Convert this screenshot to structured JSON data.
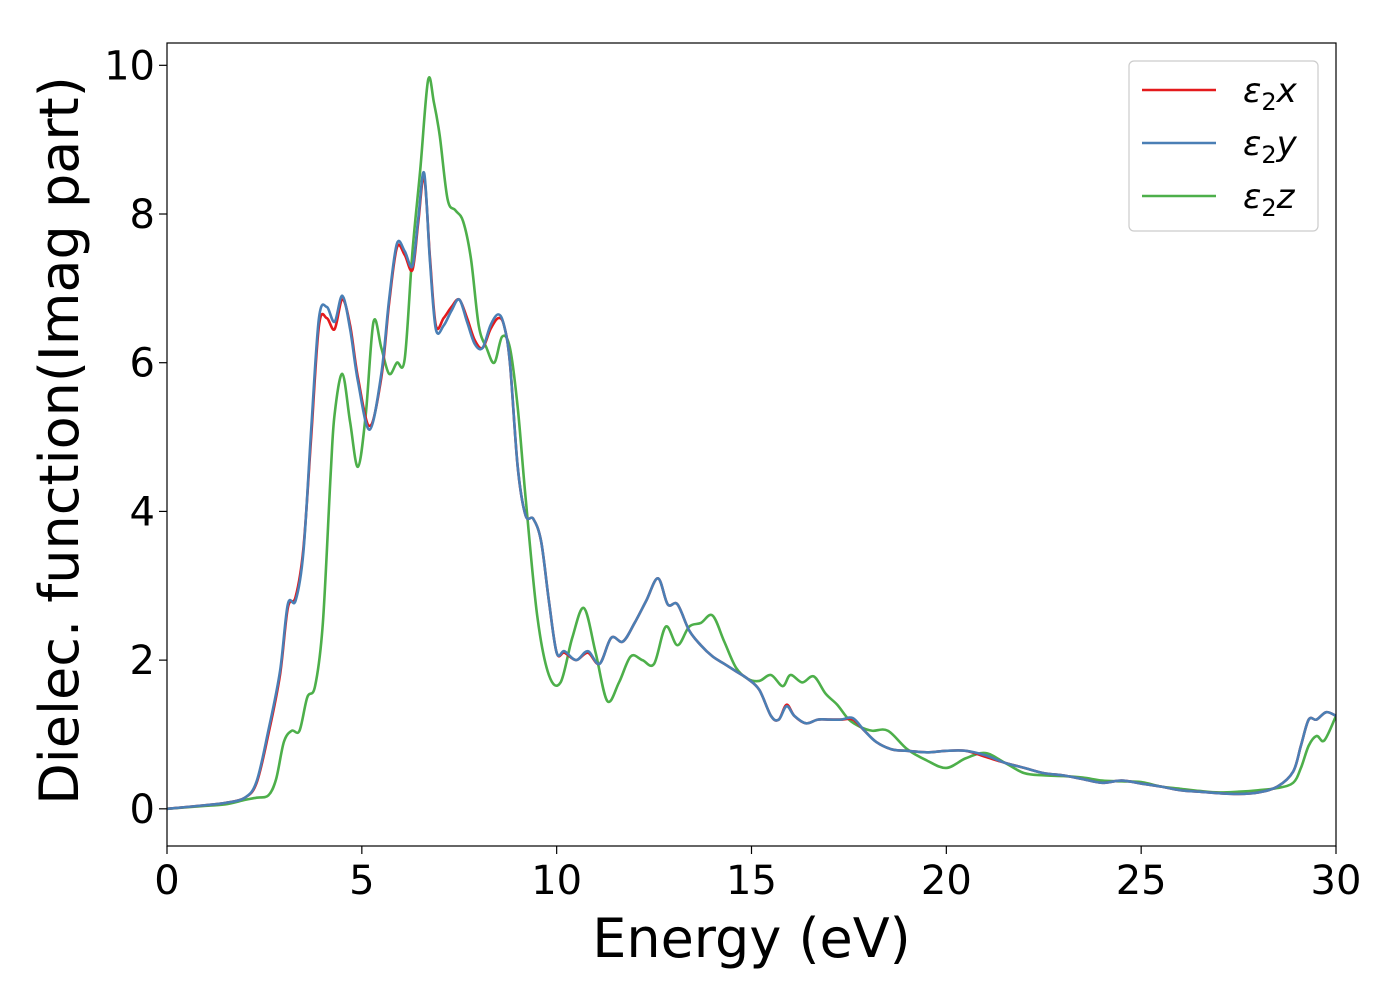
{
  "chart_data": {
    "type": "line",
    "title": "",
    "xlabel": "Energy (eV)",
    "ylabel": "Dielec. function(Imag part)",
    "xlim": [
      0,
      30
    ],
    "ylim": [
      -0.5,
      10.3
    ],
    "xticks": [
      0,
      5,
      10,
      15,
      20,
      25,
      30
    ],
    "yticks": [
      0,
      2,
      4,
      6,
      8,
      10
    ],
    "grid": false,
    "legend_position": "top-right",
    "series": [
      {
        "name": "ε2x",
        "legend_base": "ε",
        "legend_sub": "2",
        "legend_var": "x",
        "color": "#e41a1c",
        "x": [
          0,
          1,
          1.5,
          2,
          2.3,
          2.6,
          2.9,
          3.1,
          3.3,
          3.5,
          3.7,
          3.9,
          4.1,
          4.3,
          4.5,
          4.7,
          4.9,
          5.2,
          5.5,
          5.7,
          5.9,
          6.1,
          6.3,
          6.45,
          6.6,
          6.75,
          6.9,
          7.1,
          7.3,
          7.5,
          7.7,
          7.9,
          8.1,
          8.3,
          8.5,
          8.65,
          8.8,
          9.0,
          9.2,
          9.4,
          9.6,
          9.8,
          10.0,
          10.2,
          10.5,
          10.8,
          11.1,
          11.4,
          11.7,
          12.0,
          12.3,
          12.6,
          12.85,
          13.1,
          13.4,
          13.7,
          14.0,
          14.3,
          14.6,
          14.9,
          15.2,
          15.5,
          15.7,
          15.9,
          16.1,
          16.4,
          16.7,
          17.0,
          17.3,
          17.6,
          17.9,
          18.2,
          18.6,
          19.0,
          19.5,
          20.0,
          20.5,
          21.0,
          21.5,
          22.0,
          22.5,
          23.0,
          23.5,
          24.0,
          24.5,
          25.0,
          25.5,
          26.0,
          26.5,
          27.0,
          27.5,
          28.0,
          28.5,
          28.9,
          29.1,
          29.3,
          29.5,
          29.75,
          30
        ],
        "y": [
          0,
          0.05,
          0.08,
          0.15,
          0.35,
          1.0,
          1.8,
          2.7,
          2.85,
          3.5,
          5.0,
          6.5,
          6.6,
          6.45,
          6.85,
          6.5,
          5.8,
          5.15,
          5.8,
          6.8,
          7.55,
          7.45,
          7.25,
          7.9,
          8.5,
          7.4,
          6.5,
          6.6,
          6.75,
          6.85,
          6.6,
          6.3,
          6.2,
          6.45,
          6.6,
          6.5,
          6.0,
          4.6,
          3.95,
          3.9,
          3.6,
          2.8,
          2.1,
          2.1,
          2.0,
          2.1,
          1.95,
          2.3,
          2.25,
          2.5,
          2.8,
          3.1,
          2.75,
          2.75,
          2.4,
          2.2,
          2.05,
          1.95,
          1.85,
          1.75,
          1.6,
          1.25,
          1.2,
          1.4,
          1.25,
          1.15,
          1.2,
          1.2,
          1.2,
          1.2,
          1.05,
          0.9,
          0.8,
          0.78,
          0.76,
          0.78,
          0.78,
          0.7,
          0.62,
          0.55,
          0.48,
          0.45,
          0.4,
          0.35,
          0.38,
          0.34,
          0.3,
          0.25,
          0.23,
          0.21,
          0.2,
          0.22,
          0.3,
          0.5,
          0.85,
          1.2,
          1.2,
          1.3,
          1.25
        ]
      },
      {
        "name": "ε2y",
        "legend_base": "ε",
        "legend_sub": "2",
        "legend_var": "y",
        "color": "#4a7fb5",
        "x": [
          0,
          1,
          1.5,
          2,
          2.3,
          2.6,
          2.9,
          3.1,
          3.3,
          3.5,
          3.7,
          3.9,
          4.1,
          4.3,
          4.5,
          4.7,
          4.9,
          5.2,
          5.5,
          5.7,
          5.9,
          6.1,
          6.3,
          6.45,
          6.6,
          6.75,
          6.9,
          7.1,
          7.3,
          7.5,
          7.7,
          7.9,
          8.1,
          8.3,
          8.5,
          8.65,
          8.8,
          9.0,
          9.2,
          9.4,
          9.6,
          9.8,
          10.0,
          10.2,
          10.5,
          10.8,
          11.1,
          11.4,
          11.7,
          12.0,
          12.3,
          12.6,
          12.85,
          13.1,
          13.4,
          13.7,
          14.0,
          14.3,
          14.6,
          14.9,
          15.2,
          15.5,
          15.7,
          15.9,
          16.1,
          16.4,
          16.7,
          17.0,
          17.3,
          17.6,
          17.9,
          18.2,
          18.6,
          19.0,
          19.5,
          20.0,
          20.5,
          21.0,
          21.5,
          22.0,
          22.5,
          23.0,
          23.5,
          24.0,
          24.5,
          25.0,
          25.5,
          26.0,
          26.5,
          27.0,
          27.5,
          28.0,
          28.5,
          28.9,
          29.1,
          29.3,
          29.5,
          29.75,
          30
        ],
        "y": [
          0,
          0.05,
          0.08,
          0.15,
          0.37,
          1.05,
          1.85,
          2.75,
          2.8,
          3.45,
          5.1,
          6.6,
          6.75,
          6.55,
          6.9,
          6.45,
          5.75,
          5.1,
          5.85,
          6.85,
          7.6,
          7.5,
          7.3,
          7.95,
          8.55,
          7.35,
          6.45,
          6.5,
          6.7,
          6.85,
          6.55,
          6.25,
          6.2,
          6.5,
          6.65,
          6.5,
          6.0,
          4.6,
          3.95,
          3.9,
          3.6,
          2.8,
          2.1,
          2.12,
          2.0,
          2.12,
          1.95,
          2.3,
          2.25,
          2.5,
          2.8,
          3.1,
          2.75,
          2.75,
          2.4,
          2.2,
          2.05,
          1.95,
          1.85,
          1.75,
          1.6,
          1.25,
          1.2,
          1.38,
          1.25,
          1.15,
          1.2,
          1.2,
          1.2,
          1.22,
          1.05,
          0.9,
          0.8,
          0.78,
          0.76,
          0.78,
          0.78,
          0.72,
          0.62,
          0.55,
          0.48,
          0.45,
          0.4,
          0.35,
          0.38,
          0.34,
          0.3,
          0.25,
          0.23,
          0.21,
          0.2,
          0.22,
          0.3,
          0.5,
          0.85,
          1.2,
          1.2,
          1.3,
          1.25
        ]
      },
      {
        "name": "ε2z",
        "legend_base": "ε",
        "legend_sub": "2",
        "legend_var": "z",
        "color": "#4daf4a",
        "x": [
          0,
          1,
          1.5,
          2,
          2.3,
          2.6,
          2.8,
          3.0,
          3.2,
          3.4,
          3.6,
          3.8,
          4.0,
          4.2,
          4.3,
          4.5,
          4.7,
          4.9,
          5.1,
          5.3,
          5.5,
          5.7,
          5.9,
          6.1,
          6.3,
          6.5,
          6.7,
          6.85,
          7.0,
          7.2,
          7.4,
          7.6,
          7.8,
          8.0,
          8.2,
          8.4,
          8.6,
          8.8,
          9.0,
          9.2,
          9.5,
          9.8,
          10.1,
          10.4,
          10.7,
          11.0,
          11.3,
          11.6,
          11.9,
          12.2,
          12.5,
          12.8,
          13.1,
          13.4,
          13.7,
          14.0,
          14.3,
          14.6,
          14.9,
          15.2,
          15.5,
          15.8,
          16.0,
          16.3,
          16.6,
          16.9,
          17.2,
          17.5,
          17.8,
          18.1,
          18.5,
          19.0,
          19.5,
          20.0,
          20.5,
          21.0,
          21.5,
          22.0,
          22.5,
          23.0,
          23.5,
          24.0,
          24.5,
          25.0,
          25.5,
          26.0,
          26.5,
          27.0,
          27.5,
          28.0,
          28.5,
          28.9,
          29.1,
          29.3,
          29.5,
          29.7,
          30
        ],
        "y": [
          0,
          0.04,
          0.06,
          0.12,
          0.15,
          0.18,
          0.4,
          0.9,
          1.05,
          1.05,
          1.5,
          1.65,
          2.5,
          4.5,
          5.3,
          5.85,
          5.2,
          4.6,
          5.3,
          6.55,
          6.2,
          5.85,
          6.0,
          6.05,
          7.5,
          8.6,
          9.8,
          9.5,
          9.05,
          8.2,
          8.05,
          7.9,
          7.4,
          6.5,
          6.2,
          6.0,
          6.35,
          6.2,
          5.4,
          4.2,
          2.6,
          1.8,
          1.7,
          2.3,
          2.7,
          2.1,
          1.45,
          1.7,
          2.05,
          2.0,
          1.95,
          2.45,
          2.2,
          2.45,
          2.5,
          2.6,
          2.25,
          1.9,
          1.75,
          1.72,
          1.8,
          1.65,
          1.8,
          1.7,
          1.78,
          1.55,
          1.4,
          1.2,
          1.1,
          1.05,
          1.05,
          0.8,
          0.65,
          0.55,
          0.68,
          0.75,
          0.62,
          0.48,
          0.45,
          0.44,
          0.42,
          0.38,
          0.37,
          0.36,
          0.3,
          0.27,
          0.24,
          0.22,
          0.23,
          0.25,
          0.28,
          0.35,
          0.55,
          0.85,
          0.98,
          0.92,
          1.25
        ]
      }
    ]
  }
}
